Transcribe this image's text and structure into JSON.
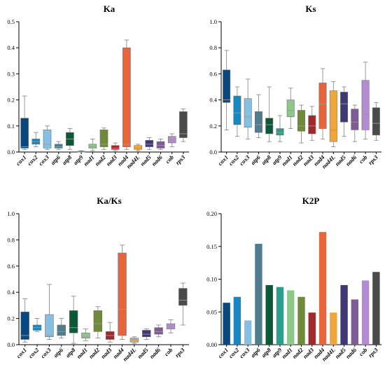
{
  "chart_data": [
    {
      "type": "box",
      "title": "Ka",
      "ylim": [
        0,
        0.5
      ],
      "yticks": [
        "0.0",
        "0.1",
        "0.2",
        "0.3",
        "0.4",
        "0.5"
      ],
      "categories": [
        "cox1",
        "cox2",
        "cox3",
        "atp6",
        "atp8",
        "atp9",
        "nad1",
        "nad2",
        "nad3",
        "nad4",
        "nad4L",
        "nad5",
        "nad6",
        "cob",
        "rps3"
      ],
      "colors": [
        "#08487e",
        "#1a86c0",
        "#85bfe2",
        "#4f7d8f",
        "#0d5836",
        "#2e9e8c",
        "#8dc88a",
        "#6f8a39",
        "#a2282b",
        "#e8643a",
        "#f0a63a",
        "#403875",
        "#7e5b94",
        "#b48ad0",
        "#4a4a4a"
      ],
      "boxes": [
        {
          "min": 0.01,
          "q1": 0.015,
          "median": 0.02,
          "q3": 0.13,
          "max": 0.215
        },
        {
          "min": 0.02,
          "q1": 0.03,
          "median": 0.04,
          "q3": 0.05,
          "max": 0.075
        },
        {
          "min": 0.01,
          "q1": 0.015,
          "median": 0.03,
          "q3": 0.085,
          "max": 0.1
        },
        {
          "min": 0.01,
          "q1": 0.015,
          "median": 0.02,
          "q3": 0.03,
          "max": 0.04
        },
        {
          "min": 0.01,
          "q1": 0.025,
          "median": 0.05,
          "q3": 0.075,
          "max": 0.09
        },
        {
          "min": 0.0,
          "q1": 0.0,
          "median": 0.0,
          "q3": 0.003,
          "max": 0.005
        },
        {
          "min": 0.005,
          "q1": 0.015,
          "median": 0.02,
          "q3": 0.03,
          "max": 0.05
        },
        {
          "min": 0.01,
          "q1": 0.02,
          "median": 0.03,
          "q3": 0.085,
          "max": 0.092
        },
        {
          "min": 0.005,
          "q1": 0.01,
          "median": 0.015,
          "q3": 0.025,
          "max": 0.035
        },
        {
          "min": 0.01,
          "q1": 0.02,
          "median": 0.03,
          "q3": 0.4,
          "max": 0.43
        },
        {
          "min": 0.005,
          "q1": 0.01,
          "median": 0.015,
          "q3": 0.025,
          "max": 0.03
        },
        {
          "min": 0.01,
          "q1": 0.02,
          "median": 0.03,
          "q3": 0.045,
          "max": 0.055
        },
        {
          "min": 0.01,
          "q1": 0.015,
          "median": 0.025,
          "q3": 0.04,
          "max": 0.05
        },
        {
          "min": 0.02,
          "q1": 0.035,
          "median": 0.045,
          "q3": 0.06,
          "max": 0.07
        },
        {
          "min": 0.04,
          "q1": 0.055,
          "median": 0.07,
          "q3": 0.155,
          "max": 0.165
        }
      ]
    },
    {
      "type": "box",
      "title": "Ks",
      "ylim": [
        0,
        1.0
      ],
      "yticks": [
        "0.0",
        "0.2",
        "0.4",
        "0.6",
        "0.8",
        "1.0"
      ],
      "categories": [
        "cox1",
        "cox2",
        "cox3",
        "atp6",
        "atp8",
        "atp9",
        "nad1",
        "nad2",
        "nad3",
        "nad4",
        "nad4L",
        "nad5",
        "nad6",
        "cob",
        "rps3"
      ],
      "colors": [
        "#08487e",
        "#1a86c0",
        "#85bfe2",
        "#4f7d8f",
        "#0d5836",
        "#2e9e8c",
        "#8dc88a",
        "#6f8a39",
        "#a2282b",
        "#e8643a",
        "#f0a63a",
        "#403875",
        "#7e5b94",
        "#b48ad0",
        "#4a4a4a"
      ],
      "boxes": [
        {
          "min": 0.17,
          "q1": 0.38,
          "median": 0.4,
          "q3": 0.63,
          "max": 0.78
        },
        {
          "min": 0.12,
          "q1": 0.21,
          "median": 0.3,
          "q3": 0.43,
          "max": 0.5
        },
        {
          "min": 0.1,
          "q1": 0.19,
          "median": 0.27,
          "q3": 0.41,
          "max": 0.56
        },
        {
          "min": 0.11,
          "q1": 0.15,
          "median": 0.21,
          "q3": 0.31,
          "max": 0.44
        },
        {
          "min": 0.08,
          "q1": 0.14,
          "median": 0.21,
          "q3": 0.26,
          "max": 0.5
        },
        {
          "min": 0.08,
          "q1": 0.13,
          "median": 0.15,
          "q3": 0.18,
          "max": 0.28
        },
        {
          "min": 0.18,
          "q1": 0.27,
          "median": 0.32,
          "q3": 0.4,
          "max": 0.49
        },
        {
          "min": 0.07,
          "q1": 0.16,
          "median": 0.2,
          "q3": 0.32,
          "max": 0.36
        },
        {
          "min": 0.09,
          "q1": 0.14,
          "median": 0.2,
          "q3": 0.28,
          "max": 0.35
        },
        {
          "min": 0.1,
          "q1": 0.18,
          "median": 0.37,
          "q3": 0.53,
          "max": 0.64
        },
        {
          "min": 0.04,
          "q1": 0.08,
          "median": 0.17,
          "q3": 0.47,
          "max": 0.54
        },
        {
          "min": 0.12,
          "q1": 0.23,
          "median": 0.37,
          "q3": 0.46,
          "max": 0.5
        },
        {
          "min": 0.08,
          "q1": 0.17,
          "median": 0.23,
          "q3": 0.33,
          "max": 0.36
        },
        {
          "min": 0.1,
          "q1": 0.17,
          "median": 0.29,
          "q3": 0.55,
          "max": 0.69
        },
        {
          "min": 0.09,
          "q1": 0.13,
          "median": 0.22,
          "q3": 0.34,
          "max": 0.38
        }
      ]
    },
    {
      "type": "box",
      "title": "Ka/Ks",
      "ylim": [
        0,
        1.0
      ],
      "yticks": [
        "0.0",
        "0.2",
        "0.4",
        "0.6",
        "0.8",
        "1.0"
      ],
      "categories": [
        "cox1",
        "cox2",
        "cox3",
        "atp6",
        "atp8",
        "nad1",
        "nad2",
        "nad3",
        "nad4",
        "nad4L",
        "nad5",
        "nad6",
        "cob",
        "rps3"
      ],
      "colors": [
        "#08487e",
        "#1a86c0",
        "#85bfe2",
        "#4f7d8f",
        "#0d5836",
        "#8dc88a",
        "#6f8a39",
        "#a2282b",
        "#e8643a",
        "#f0a63a",
        "#403875",
        "#7e5b94",
        "#b48ad0",
        "#4a4a4a"
      ],
      "boxes": [
        {
          "min": 0.02,
          "q1": 0.04,
          "median": 0.07,
          "q3": 0.25,
          "max": 0.35
        },
        {
          "min": 0.1,
          "q1": 0.11,
          "median": 0.13,
          "q3": 0.15,
          "max": 0.2
        },
        {
          "min": 0.04,
          "q1": 0.06,
          "median": 0.07,
          "q3": 0.23,
          "max": 0.46
        },
        {
          "min": 0.05,
          "q1": 0.07,
          "median": 0.1,
          "q3": 0.15,
          "max": 0.2
        },
        {
          "min": 0.01,
          "q1": 0.09,
          "median": 0.13,
          "q3": 0.26,
          "max": 0.37
        },
        {
          "min": 0.03,
          "q1": 0.05,
          "median": 0.06,
          "q3": 0.09,
          "max": 0.12
        },
        {
          "min": 0.05,
          "q1": 0.1,
          "median": 0.16,
          "q3": 0.26,
          "max": 0.29
        },
        {
          "min": 0.02,
          "q1": 0.04,
          "median": 0.07,
          "q3": 0.1,
          "max": 0.17
        },
        {
          "min": 0.04,
          "q1": 0.07,
          "median": 0.27,
          "q3": 0.7,
          "max": 0.76
        },
        {
          "min": 0.01,
          "q1": 0.02,
          "median": 0.04,
          "q3": 0.05,
          "max": 0.06
        },
        {
          "min": 0.04,
          "q1": 0.06,
          "median": 0.08,
          "q3": 0.11,
          "max": 0.12
        },
        {
          "min": 0.06,
          "q1": 0.08,
          "median": 0.1,
          "q3": 0.13,
          "max": 0.15
        },
        {
          "min": 0.09,
          "q1": 0.12,
          "median": 0.14,
          "q3": 0.16,
          "max": 0.19
        },
        {
          "min": 0.15,
          "q1": 0.3,
          "median": 0.34,
          "q3": 0.43,
          "max": 0.47
        }
      ]
    },
    {
      "type": "bar",
      "title": "K2P",
      "ylim": [
        0,
        0.2
      ],
      "yticks": [
        "0.00",
        "0.05",
        "0.10",
        "0.15",
        "0.20"
      ],
      "categories": [
        "cox1",
        "cox2",
        "cox3",
        "atp6",
        "atp8",
        "atp9",
        "nad1",
        "nad2",
        "nad3",
        "nad4",
        "nad4L",
        "nad5",
        "nad6",
        "cob",
        "rps3"
      ],
      "colors": [
        "#08487e",
        "#1a86c0",
        "#85bfe2",
        "#4f7d8f",
        "#0d5836",
        "#2e9e8c",
        "#8dc88a",
        "#6f8a39",
        "#a2282b",
        "#e8643a",
        "#f0a63a",
        "#403875",
        "#7e5b94",
        "#b48ad0",
        "#4a4a4a"
      ],
      "values": [
        0.064,
        0.073,
        0.037,
        0.154,
        0.091,
        0.088,
        0.083,
        0.073,
        0.049,
        0.172,
        0.049,
        0.091,
        0.069,
        0.098,
        0.111
      ]
    }
  ]
}
